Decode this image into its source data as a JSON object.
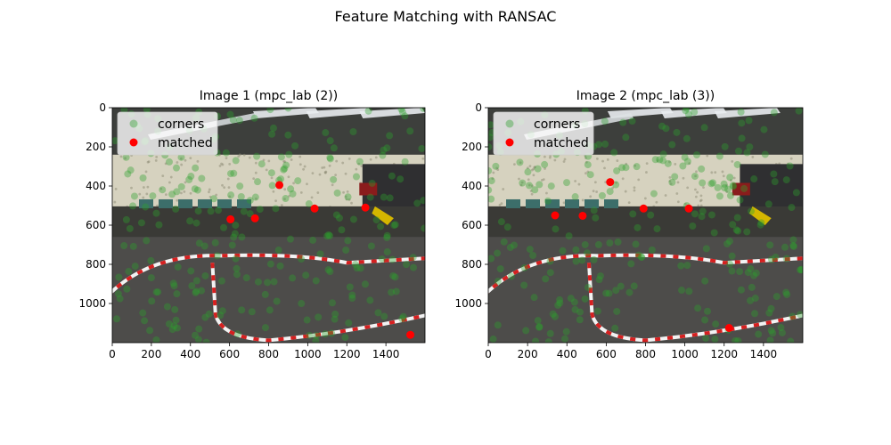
{
  "figure": {
    "title": "Feature Matching with RANSAC"
  },
  "chart_data": [
    {
      "type": "scatter",
      "title": "Image 1 (mpc_lab (2))",
      "background": "photo of a robotics lab with a striped track",
      "xlim": [
        0,
        1600
      ],
      "ylim": [
        1200,
        0
      ],
      "xticks": [
        0,
        200,
        400,
        600,
        800,
        1000,
        1200,
        1400
      ],
      "yticks": [
        0,
        200,
        400,
        600,
        800,
        1000
      ],
      "legend": {
        "position": "top-left",
        "entries": [
          {
            "label": "corners",
            "color": "#2ca02c",
            "marker": "circle",
            "alpha": 0.4
          },
          {
            "label": "matched",
            "color": "#ff0000",
            "marker": "circle"
          }
        ]
      },
      "series": [
        {
          "name": "matched",
          "color": "#ff0000",
          "points": [
            [
              605,
              570
            ],
            [
              730,
              565
            ],
            [
              855,
              395
            ],
            [
              1035,
              515
            ],
            [
              1295,
              510
            ],
            [
              1525,
              1160
            ]
          ]
        }
      ]
    },
    {
      "type": "scatter",
      "title": "Image 2 (mpc_lab (3))",
      "background": "photo of a robotics lab with a striped track",
      "xlim": [
        0,
        1600
      ],
      "ylim": [
        1200,
        0
      ],
      "xticks": [
        0,
        200,
        400,
        600,
        800,
        1000,
        1200,
        1400
      ],
      "yticks": [
        0,
        200,
        400,
        600,
        800,
        1000
      ],
      "legend": {
        "position": "top-left",
        "entries": [
          {
            "label": "corners",
            "color": "#2ca02c",
            "marker": "circle",
            "alpha": 0.4
          },
          {
            "label": "matched",
            "color": "#ff0000",
            "marker": "circle"
          }
        ]
      },
      "series": [
        {
          "name": "matched",
          "color": "#ff0000",
          "points": [
            [
              620,
              380
            ],
            [
              340,
              550
            ],
            [
              480,
              552
            ],
            [
              790,
              515
            ],
            [
              1020,
              515
            ],
            [
              1225,
              1125
            ]
          ]
        }
      ]
    }
  ]
}
